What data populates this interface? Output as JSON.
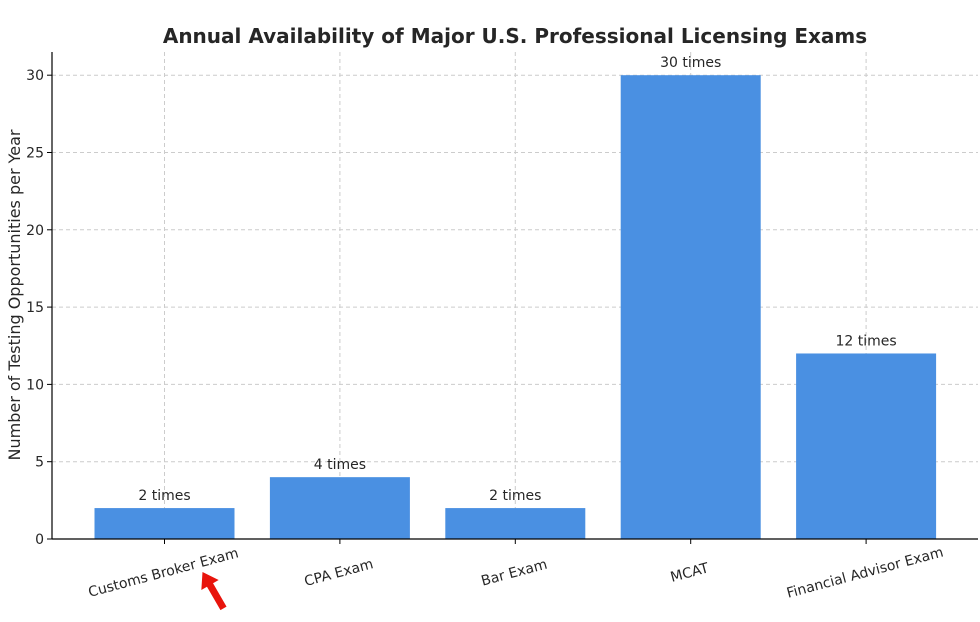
{
  "chart_data": {
    "type": "bar",
    "title": "Annual Availability of Major U.S. Professional Licensing Exams",
    "xlabel": "",
    "ylabel": "Number of Testing Opportunities per Year",
    "categories": [
      "Customs Broker Exam",
      "CPA Exam",
      "Bar Exam",
      "MCAT",
      "Financial Advisor Exam"
    ],
    "values": [
      2,
      4,
      2,
      30,
      12
    ],
    "data_labels": [
      "2 times",
      "4 times",
      "2 times",
      "30 times",
      "12 times"
    ],
    "yticks": [
      0,
      5,
      10,
      15,
      20,
      25,
      30
    ],
    "ylim": [
      0,
      31.5
    ],
    "grid": true,
    "bar_color": "#4a90e2",
    "annotation": {
      "type": "arrow",
      "color": "#e8140c",
      "target_category": "Customs Broker Exam"
    }
  }
}
